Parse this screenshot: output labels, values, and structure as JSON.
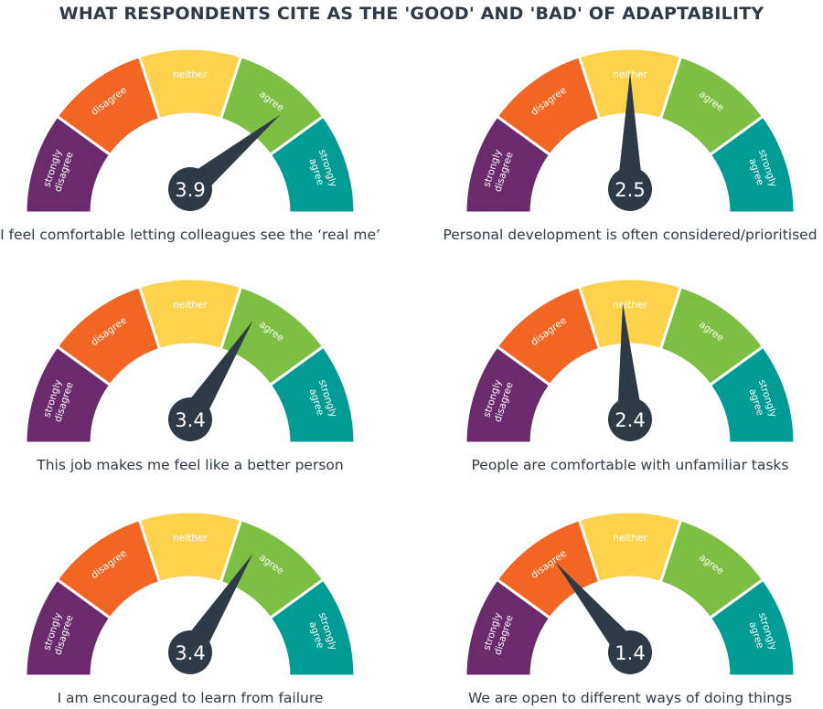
{
  "chart_data": {
    "type": "gauge",
    "title": "WHAT RESPONDENTS CITE AS THE 'GOOD' AND 'BAD' OF ADAPTABILITY",
    "scale": [
      0,
      5
    ],
    "segments": [
      {
        "label": [
          "strongly",
          "disagree"
        ],
        "color": "#6b2a6b"
      },
      {
        "label": [
          "disagree"
        ],
        "color": "#f26522"
      },
      {
        "label": [
          "neither"
        ],
        "color": "#fdd34e"
      },
      {
        "label": [
          "agree"
        ],
        "color": "#7dbf42"
      },
      {
        "label": [
          "strongly",
          "agree"
        ],
        "color": "#009b94"
      }
    ],
    "needle_color": "#2e3a46",
    "gauges": [
      {
        "caption": "I feel comfortable letting colleagues see the ‘real me’",
        "value": 3.9,
        "display": "3.9"
      },
      {
        "caption": "Personal development is often considered/prioritised",
        "value": 2.5,
        "display": "2.5"
      },
      {
        "caption": "This job makes me feel like a better person",
        "value": 3.4,
        "display": "3.4"
      },
      {
        "caption": "People are comfortable with unfamiliar tasks",
        "value": 2.4,
        "display": "2.4"
      },
      {
        "caption": "I am encouraged to learn from failure",
        "value": 3.4,
        "display": "3.4"
      },
      {
        "caption": "We are open to different ways of doing things",
        "value": 1.4,
        "display": "1.4"
      }
    ]
  }
}
